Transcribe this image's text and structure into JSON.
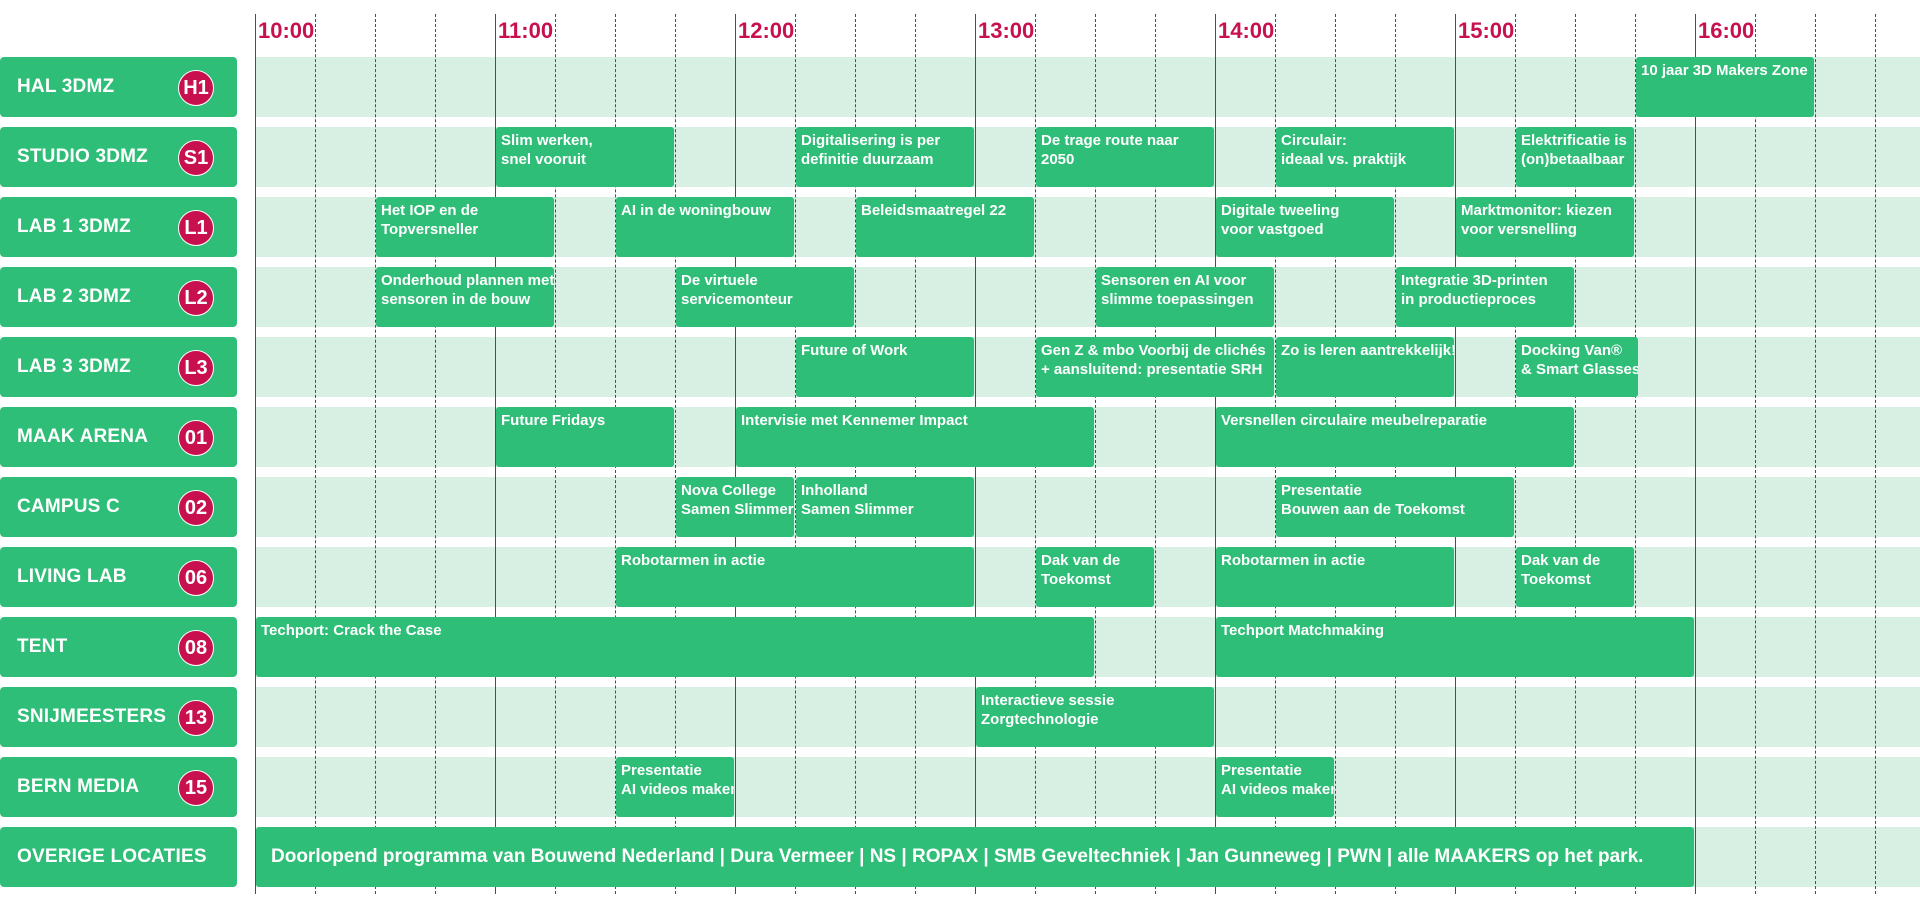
{
  "hours": [
    "10:00",
    "11:00",
    "12:00",
    "13:00",
    "14:00",
    "15:00",
    "16:00"
  ],
  "colors": {
    "accent": "#c8104e",
    "green": "#2fbe78",
    "light_green": "#d7f0e3"
  },
  "locations": [
    {
      "name": "HAL 3DMZ",
      "code": "H1",
      "events": [
        {
          "lines": [
            "10 jaar 3D Makers Zone"
          ],
          "start": "15:45",
          "end": "16:30"
        }
      ]
    },
    {
      "name": "STUDIO 3DMZ",
      "code": "S1",
      "events": [
        {
          "lines": [
            "Slim werken,",
            "snel vooruit"
          ],
          "start": "11:00",
          "end": "11:45"
        },
        {
          "lines": [
            "Digitalisering is per",
            "definitie duurzaam"
          ],
          "start": "12:15",
          "end": "13:00"
        },
        {
          "lines": [
            "De trage route naar",
            "2050"
          ],
          "start": "13:15",
          "end": "14:00"
        },
        {
          "lines": [
            "Circulair:",
            "ideaal vs. praktijk"
          ],
          "start": "14:15",
          "end": "15:00"
        },
        {
          "lines": [
            "Elektrificatie is",
            "(on)betaalbaar"
          ],
          "start": "15:15",
          "end": "15:45"
        }
      ]
    },
    {
      "name": "LAB 1 3DMZ",
      "code": "L1",
      "events": [
        {
          "lines": [
            "Het IOP en de",
            "Topversneller"
          ],
          "start": "10:30",
          "end": "11:15"
        },
        {
          "lines": [
            "AI in de woningbouw"
          ],
          "start": "11:30",
          "end": "12:15"
        },
        {
          "lines": [
            "Beleidsmaatregel 22"
          ],
          "start": "12:30",
          "end": "13:15"
        },
        {
          "lines": [
            "Digitale tweeling",
            "voor vastgoed"
          ],
          "start": "14:00",
          "end": "14:45"
        },
        {
          "lines": [
            "Marktmonitor: kiezen",
            "voor versnelling"
          ],
          "start": "15:00",
          "end": "15:45"
        }
      ]
    },
    {
      "name": "LAB 2 3DMZ",
      "code": "L2",
      "events": [
        {
          "lines": [
            "Onderhoud plannen met",
            "sensoren in de bouw"
          ],
          "start": "10:30",
          "end": "11:15"
        },
        {
          "lines": [
            "De virtuele",
            "servicemonteur"
          ],
          "start": "11:45",
          "end": "12:30"
        },
        {
          "lines": [
            "Sensoren en AI voor",
            "slimme toepassingen"
          ],
          "start": "13:30",
          "end": "14:15"
        },
        {
          "lines": [
            "Integratie 3D-printen",
            "in productieproces"
          ],
          "start": "14:45",
          "end": "15:30"
        }
      ]
    },
    {
      "name": "LAB 3 3DMZ",
      "code": "L3",
      "events": [
        {
          "lines": [
            "Future of Work"
          ],
          "start": "12:15",
          "end": "13:00"
        },
        {
          "lines": [
            "Gen Z & mbo Voorbij de clichés",
            "+ aansluitend: presentatie SRH"
          ],
          "start": "13:15",
          "end": "14:15"
        },
        {
          "lines": [
            "Zo is leren aantrekkelijk!"
          ],
          "start": "14:15",
          "end": "15:00"
        },
        {
          "lines": [
            "Docking Van®",
            "& Smart Glasses"
          ],
          "start": "15:15",
          "end": "15:46"
        }
      ]
    },
    {
      "name": "MAAK ARENA",
      "code": "01",
      "events": [
        {
          "lines": [
            "Future Fridays"
          ],
          "start": "11:00",
          "end": "11:45"
        },
        {
          "lines": [
            "Intervisie met Kennemer Impact"
          ],
          "start": "12:00",
          "end": "13:30"
        },
        {
          "lines": [
            "Versnellen circulaire meubelreparatie"
          ],
          "start": "14:00",
          "end": "15:30"
        }
      ]
    },
    {
      "name": "CAMPUS C",
      "code": "02",
      "events": [
        {
          "lines": [
            "Nova College",
            "Samen Slimmer"
          ],
          "start": "11:45",
          "end": "12:15"
        },
        {
          "lines": [
            "Inholland",
            "Samen Slimmer"
          ],
          "start": "12:15",
          "end": "13:00"
        },
        {
          "lines": [
            "Presentatie",
            "Bouwen aan de Toekomst"
          ],
          "start": "14:15",
          "end": "15:15"
        }
      ]
    },
    {
      "name": "LIVING LAB",
      "code": "06",
      "events": [
        {
          "lines": [
            "Robotarmen in actie"
          ],
          "start": "11:30",
          "end": "13:00"
        },
        {
          "lines": [
            "Dak van de",
            "Toekomst"
          ],
          "start": "13:15",
          "end": "13:45"
        },
        {
          "lines": [
            "Robotarmen in actie"
          ],
          "start": "14:00",
          "end": "15:00"
        },
        {
          "lines": [
            "Dak van de",
            "Toekomst"
          ],
          "start": "15:15",
          "end": "15:45"
        }
      ]
    },
    {
      "name": "TENT",
      "code": "08",
      "events": [
        {
          "lines": [
            "Techport: Crack the Case"
          ],
          "start": "10:00",
          "end": "13:30"
        },
        {
          "lines": [
            "Techport Matchmaking"
          ],
          "start": "14:00",
          "end": "16:00"
        }
      ]
    },
    {
      "name": "SNIJMEESTERS",
      "code": "13",
      "events": [
        {
          "lines": [
            "Interactieve sessie",
            "Zorgtechnologie"
          ],
          "start": "13:00",
          "end": "14:00"
        }
      ]
    },
    {
      "name": "BERN MEDIA",
      "code": "15",
      "events": [
        {
          "lines": [
            "Presentatie",
            "AI videos maken"
          ],
          "start": "11:30",
          "end": "12:00"
        },
        {
          "lines": [
            "Presentatie",
            "AI videos maken"
          ],
          "start": "14:00",
          "end": "14:30"
        }
      ]
    },
    {
      "name": "OVERIGE LOCATIES",
      "code": "",
      "events": [
        {
          "lines": [
            "Doorlopend programma van Bouwend Nederland | Dura Vermeer | NS | ROPAX | SMB Geveltechniek | Jan Gunneweg | PWN | alle MAAKERS op het park."
          ],
          "start": "10:00",
          "end": "16:00",
          "big": true
        }
      ]
    }
  ]
}
